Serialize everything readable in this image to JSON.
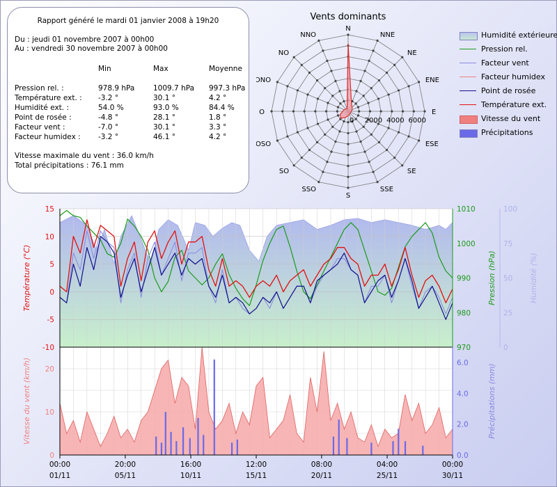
{
  "report": {
    "title": "Rapport généré le mardi 01 janvier 2008 à 19h20",
    "from": "Du : jeudi 01 novembre 2007 à 00h00",
    "to": "Au : vendredi 30 novembre 2007 à 00h00",
    "headers": [
      "Min",
      "Max",
      "Moyenne"
    ],
    "rows": [
      {
        "label": "Pression rel. :",
        "min": "978.9 hPa",
        "max": "1009.7 hPa",
        "avg": "997.3 hPa"
      },
      {
        "label": "Température ext. :",
        "min": "-3.2 °",
        "max": "30.1 °",
        "avg": "4.2 °"
      },
      {
        "label": "Humidité ext. :",
        "min": "54.0 %",
        "max": "93.0 %",
        "avg": "84.4 %"
      },
      {
        "label": "Point de rosée :",
        "min": "-4.8 °",
        "max": "28.1 °",
        "avg": "1.8 °"
      },
      {
        "label": "Facteur vent :",
        "min": "-7.0 °",
        "max": "30.1 °",
        "avg": "3.3 °"
      },
      {
        "label": "Facteur humidex :",
        "min": "-3.2 °",
        "max": "46.1 °",
        "avg": "4.2 °"
      }
    ],
    "max_wind": "Vitesse maximale du vent : 36.0 km/h",
    "total_rain": "Total précipitations : 76.1 mm"
  },
  "colors": {
    "humidity": "#a9b0ec",
    "pressure": "#1a9a1a",
    "windchill": "#8888e0",
    "humidex": "#f08080",
    "dewpoint": "#10108a",
    "temperature": "#e01010",
    "wind": "#f08080",
    "rain": "#6a6ae8"
  },
  "chart_data": [
    {
      "type": "radar",
      "title": "Vents dominants",
      "directions": [
        "N",
        "NNE",
        "NE",
        "ENE",
        "E",
        "ESE",
        "SE",
        "SSE",
        "S",
        "SSO",
        "SO",
        "OSO",
        "O",
        "ONO",
        "NO",
        "NNO"
      ],
      "radial_ticks": [
        "0",
        "2000",
        "4000",
        "6000"
      ],
      "rmax": 7000,
      "values": [
        6200,
        800,
        500,
        400,
        300,
        250,
        250,
        300,
        400,
        600,
        900,
        800,
        500,
        400,
        300,
        250
      ]
    },
    {
      "type": "line",
      "legend": [
        "Humidité extérieure",
        "Pression rel.",
        "Facteur vent",
        "Facteur humidex",
        "Point de rosée",
        "Température ext.",
        "Vitesse du vent",
        "Précipitations"
      ],
      "x_time_labels": [
        "00:00",
        "20:00",
        "16:00",
        "12:00",
        "08:00",
        "04:00",
        "00:00"
      ],
      "x_date_labels": [
        "01/11",
        "05/11",
        "10/11",
        "15/11",
        "20/11",
        "25/11",
        "30/11"
      ],
      "x_range_days": [
        0,
        29
      ],
      "upper": {
        "ylabel_left": "Température (°C)",
        "ylim_left": [
          -10,
          15
        ],
        "yticks_left": [
          -10,
          -5,
          0,
          5,
          10,
          15
        ],
        "ylabel_right1": "Pression (hPa)",
        "ylim_right1": [
          970,
          1010
        ],
        "yticks_right1": [
          970,
          980,
          990,
          1000,
          1010
        ],
        "ylabel_right2": "Humidité (%)",
        "ylim_right2": [
          0,
          100
        ],
        "yticks_right2": [
          0,
          25,
          50,
          75,
          100
        ],
        "series": [
          {
            "key": "humidity",
            "days": [
              0,
              1,
              2,
              2.7,
              3.3,
              4,
              4.5,
              5.3,
              6,
              6.7,
              7.3,
              8,
              8.7,
              9.5,
              10,
              10.7,
              11.3,
              12,
              12.7,
              13.3,
              14,
              14.7,
              15.3,
              16,
              17,
              18,
              19,
              20,
              21,
              22,
              23,
              24,
              25,
              26,
              27,
              28,
              28.5,
              29
            ],
            "values": [
              90,
              95,
              88,
              70,
              85,
              60,
              80,
              95,
              78,
              60,
              85,
              92,
              88,
              70,
              90,
              88,
              80,
              86,
              90,
              88,
              70,
              62,
              80,
              88,
              90,
              92,
              85,
              88,
              92,
              93,
              90,
              92,
              90,
              88,
              85,
              88,
              85,
              90
            ]
          },
          {
            "key": "pressure",
            "days": [
              0,
              0.5,
              1,
              1.5,
              2,
              2.5,
              3,
              3.5,
              4,
              4.5,
              5,
              5.5,
              6,
              6.5,
              7,
              7.5,
              8,
              8.5,
              9,
              9.5,
              10,
              10.5,
              11,
              11.5,
              12,
              12.5,
              13,
              13.5,
              14,
              14.5,
              15,
              15.5,
              16,
              16.5,
              17,
              17.5,
              18,
              18.5,
              19,
              19.5,
              20,
              20.5,
              21,
              21.5,
              22,
              22.5,
              23,
              23.5,
              24,
              24.5,
              25,
              25.5,
              26,
              26.5,
              27,
              27.5,
              28,
              28.5,
              29
            ],
            "values": [
              1008,
              1009.5,
              1008,
              1007.5,
              1005,
              1003,
              1001,
              997,
              996,
              1000,
              1007,
              1005,
              1002,
              998,
              990,
              986,
              989,
              996,
              998,
              992,
              990,
              988,
              990,
              994,
              997,
              991,
              987,
              984,
              982,
              988,
              995,
              1000,
              1004,
              1005,
              999,
              992,
              986,
              984,
              988,
              992,
              996,
              1000,
              1004,
              1006,
              1004,
              998,
              992,
              986,
              985,
              987,
              993,
              999,
              1002,
              1004,
              1006,
              1003,
              996,
              992,
              990
            ]
          },
          {
            "key": "dewpoint",
            "days": [
              0,
              0.5,
              1,
              1.5,
              2,
              2.5,
              3,
              3.5,
              4,
              4.5,
              5,
              5.5,
              6,
              6.5,
              7,
              7.5,
              8,
              8.5,
              9,
              9.5,
              10,
              10.5,
              11,
              11.5,
              12,
              12.5,
              13,
              13.5,
              14,
              14.5,
              15,
              15.5,
              16,
              16.5,
              17,
              17.5,
              18,
              18.5,
              19,
              19.5,
              20,
              20.5,
              21,
              21.5,
              22,
              22.5,
              23,
              23.5,
              24,
              24.5,
              25,
              25.5,
              26,
              26.5,
              27,
              27.5,
              28,
              28.5,
              29
            ],
            "values": [
              -1,
              -2,
              5,
              1,
              8,
              4,
              10,
              9,
              7,
              -1,
              3,
              6,
              0,
              4,
              8,
              3,
              5,
              7,
              3,
              6,
              5,
              6,
              1,
              -1,
              3,
              -2,
              -1,
              -2,
              -4,
              -3,
              -1,
              -2,
              0,
              -3,
              -1,
              1,
              1,
              -2,
              2,
              3,
              4,
              5,
              7,
              4,
              3,
              -2,
              0,
              2,
              3,
              -1,
              2,
              6,
              2,
              -3,
              -1,
              1,
              -2,
              -5,
              -2
            ]
          },
          {
            "key": "temperature",
            "days": [
              0,
              0.5,
              1,
              1.5,
              2,
              2.5,
              3,
              3.5,
              4,
              4.5,
              5,
              5.5,
              6,
              6.5,
              7,
              7.5,
              8,
              8.5,
              9,
              9.5,
              10,
              10.5,
              11,
              11.5,
              12,
              12.5,
              13,
              13.5,
              14,
              14.5,
              15,
              15.5,
              16,
              16.5,
              17,
              17.5,
              18,
              18.5,
              19,
              19.5,
              20,
              20.5,
              21,
              21.5,
              22,
              22.5,
              23,
              23.5,
              24,
              24.5,
              25,
              25.5,
              26,
              26.5,
              27,
              27.5,
              28,
              28.5,
              29
            ],
            "values": [
              1,
              0,
              10,
              7,
              13,
              8,
              12,
              11,
              10,
              1,
              6,
              9,
              2,
              9,
              11,
              6,
              9,
              11,
              5,
              9,
              9,
              10,
              4,
              1,
              6,
              1,
              2,
              1,
              -1,
              1,
              2,
              1,
              3,
              0,
              2,
              3,
              4,
              1,
              3,
              5,
              6,
              8,
              8,
              6,
              5,
              1,
              3,
              3,
              5,
              1,
              4,
              8,
              3,
              -1,
              2,
              3,
              1,
              -2,
              0.5
            ]
          },
          {
            "key": "windchill",
            "days": [
              0,
              0.5,
              1,
              1.5,
              2,
              2.5,
              3,
              3.5,
              4,
              4.5,
              5,
              5.5,
              6,
              6.5,
              7,
              7.5,
              8,
              8.5,
              9,
              9.5,
              10,
              10.5,
              11,
              11.5,
              12,
              12.5,
              13,
              13.5,
              14,
              14.5,
              15,
              15.5,
              16,
              16.5,
              17,
              17.5,
              18,
              18.5,
              19,
              19.5,
              20,
              20.5,
              21,
              21.5,
              22,
              22.5,
              23,
              23.5,
              24,
              24.5,
              25,
              25.5,
              26,
              26.5,
              27,
              27.5,
              28,
              28.5,
              29
            ],
            "values": [
              -1,
              -2,
              7,
              4,
              11,
              6,
              11,
              9,
              8,
              -2,
              4,
              7,
              -1,
              6,
              9,
              3,
              6,
              9,
              2,
              7,
              7,
              8,
              1,
              -2,
              4,
              -2,
              -1,
              -3,
              -4,
              -3,
              -1,
              -3,
              0,
              -3,
              -1,
              1,
              1,
              -2,
              1,
              3,
              4,
              6,
              6,
              4,
              3,
              -2,
              1,
              1,
              3,
              -2,
              2,
              6,
              1,
              -3,
              0,
              1,
              -1,
              -4,
              -1
            ]
          }
        ]
      },
      "lower": {
        "ylabel_left": "Vitesse du vent (km/h)",
        "ylim_left": [
          0,
          25
        ],
        "yticks_left": [
          0,
          10,
          20
        ],
        "ylabel_right": "Précipitations (mm)",
        "ylim_right": [
          0,
          7
        ],
        "yticks_right": [
          0.0,
          2.0,
          4.0,
          6.0
        ],
        "wind": {
          "days": [
            0,
            0.5,
            1,
            1.5,
            2,
            2.5,
            3,
            3.5,
            4,
            4.5,
            5,
            5.5,
            6,
            6.5,
            7,
            7.5,
            8,
            8.5,
            9,
            9.5,
            10,
            10.5,
            11,
            11.5,
            12,
            12.5,
            13,
            13.5,
            14,
            14.5,
            15,
            15.5,
            16,
            16.5,
            17,
            17.5,
            18,
            18.5,
            19,
            19.5,
            20,
            20.5,
            21,
            21.5,
            22,
            22.5,
            23,
            23.5,
            24,
            24.5,
            25,
            25.5,
            26,
            26.5,
            27,
            27.5,
            28,
            28.5,
            29
          ],
          "values": [
            12,
            5,
            8,
            3,
            10,
            6,
            2,
            5,
            9,
            4,
            6,
            3,
            8,
            10,
            15,
            20,
            22,
            12,
            18,
            16,
            6,
            25,
            10,
            6,
            8,
            12,
            5,
            10,
            7,
            16,
            18,
            4,
            6,
            8,
            14,
            5,
            3,
            18,
            10,
            24,
            8,
            12,
            6,
            10,
            4,
            3,
            7,
            2,
            6,
            4,
            5,
            14,
            8,
            12,
            5,
            7,
            11,
            4,
            6
          ]
        },
        "rain": {
          "days": [
            7.1,
            7.5,
            7.8,
            8.2,
            8.6,
            9.1,
            9.6,
            10.2,
            10.6,
            11.4,
            12.7,
            13.1,
            20.2,
            20.6,
            21.2,
            23.0,
            24.6,
            25.0,
            25.5,
            26.8
          ],
          "values": [
            1.2,
            0.8,
            2.8,
            1.5,
            0.9,
            1.8,
            1.1,
            2.4,
            1.3,
            6.2,
            0.8,
            1.0,
            1.2,
            2.3,
            1.1,
            0.8,
            0.9,
            1.7,
            0.9,
            0.6
          ]
        }
      }
    }
  ]
}
